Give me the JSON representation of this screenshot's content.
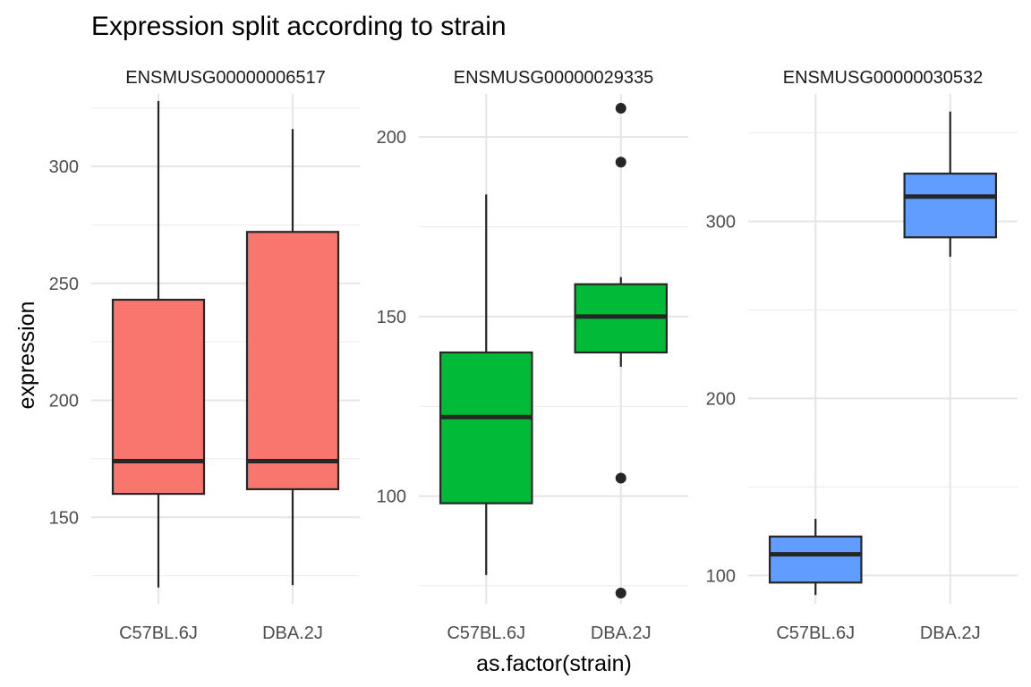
{
  "chart_data": {
    "type": "boxplot",
    "title": "Expression split according to strain",
    "xlabel": "as.factor(strain)",
    "ylabel": "expression",
    "grid": true,
    "legend": "none",
    "categories": [
      "C57BL.6J",
      "DBA.2J"
    ],
    "panels": [
      {
        "name": "ENSMUSG00000006517",
        "ylim": [
          113,
          331
        ],
        "yticks": [
          150,
          200,
          250,
          300
        ],
        "fill": "#F8766D",
        "boxes": [
          {
            "category": "C57BL.6J",
            "min": 120,
            "q1": 160,
            "median": 174,
            "q3": 243,
            "max": 328,
            "outliers": []
          },
          {
            "category": "DBA.2J",
            "min": 121,
            "q1": 162,
            "median": 174,
            "q3": 272,
            "max": 316,
            "outliers": []
          }
        ]
      },
      {
        "name": "ENSMUSG00000029335",
        "ylim": [
          70,
          212
        ],
        "yticks": [
          100,
          150,
          200
        ],
        "fill": "#00BA38",
        "boxes": [
          {
            "category": "C57BL.6J",
            "min": 78,
            "q1": 98,
            "median": 122,
            "q3": 140,
            "max": 184,
            "outliers": []
          },
          {
            "category": "DBA.2J",
            "min": 136,
            "q1": 140,
            "median": 150,
            "q3": 159,
            "max": 161,
            "outliers": [
              73,
              105,
              193,
              208
            ]
          }
        ]
      },
      {
        "name": "ENSMUSG00000030532",
        "ylim": [
          84,
          372
        ],
        "yticks": [
          100,
          200,
          300
        ],
        "fill": "#619CFF",
        "boxes": [
          {
            "category": "C57BL.6J",
            "min": 89,
            "q1": 96,
            "median": 112,
            "q3": 122,
            "max": 132,
            "outliers": []
          },
          {
            "category": "DBA.2J",
            "min": 280,
            "q1": 291,
            "median": 314,
            "q3": 327,
            "max": 362,
            "outliers": []
          }
        ]
      }
    ]
  }
}
